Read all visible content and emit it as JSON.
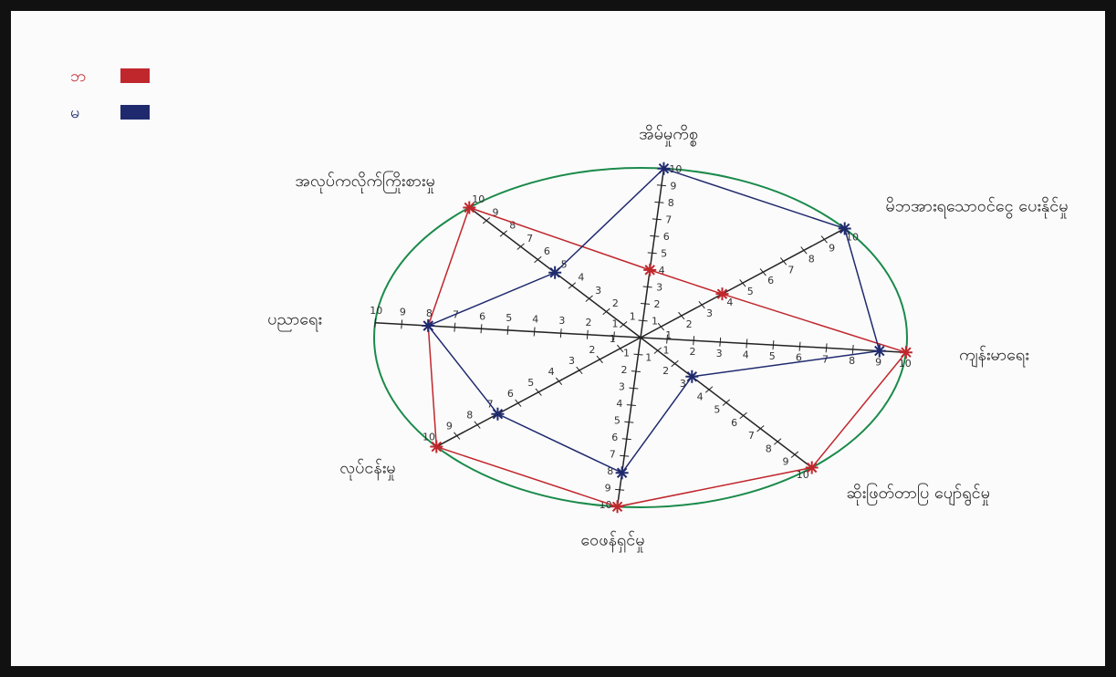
{
  "chart_data": {
    "type": "radar",
    "categories": [
      "အိမ်မှုကိစ္စ",
      "မိဘအားရသောဝင်ငွေ ပေးနိုင်မှု",
      "ကျန်းမာရေး",
      "ဆိုးဖြတ်တာပြ ပျော်ရွင်မှု",
      "ဝေဖန်ရှင်မှု",
      "လုပ်ငန်းမှု",
      "ပညာရေး",
      "အလုပ်ကလိုက်ကြိုးစားမှု"
    ],
    "series": [
      {
        "name": "ဘ",
        "color": "#c0272d",
        "values": [
          4,
          4,
          10,
          10,
          10,
          10,
          8,
          10
        ]
      },
      {
        "name": "မ",
        "color": "#1f2a6e",
        "values": [
          10,
          10,
          9,
          3,
          8,
          7,
          8,
          5
        ]
      }
    ],
    "rlim": [
      0,
      10
    ],
    "rticks": [
      1,
      2,
      3,
      4,
      5,
      6,
      7,
      8,
      9,
      10
    ],
    "outline_color": "#1a8a4a",
    "legend": "top-left"
  }
}
